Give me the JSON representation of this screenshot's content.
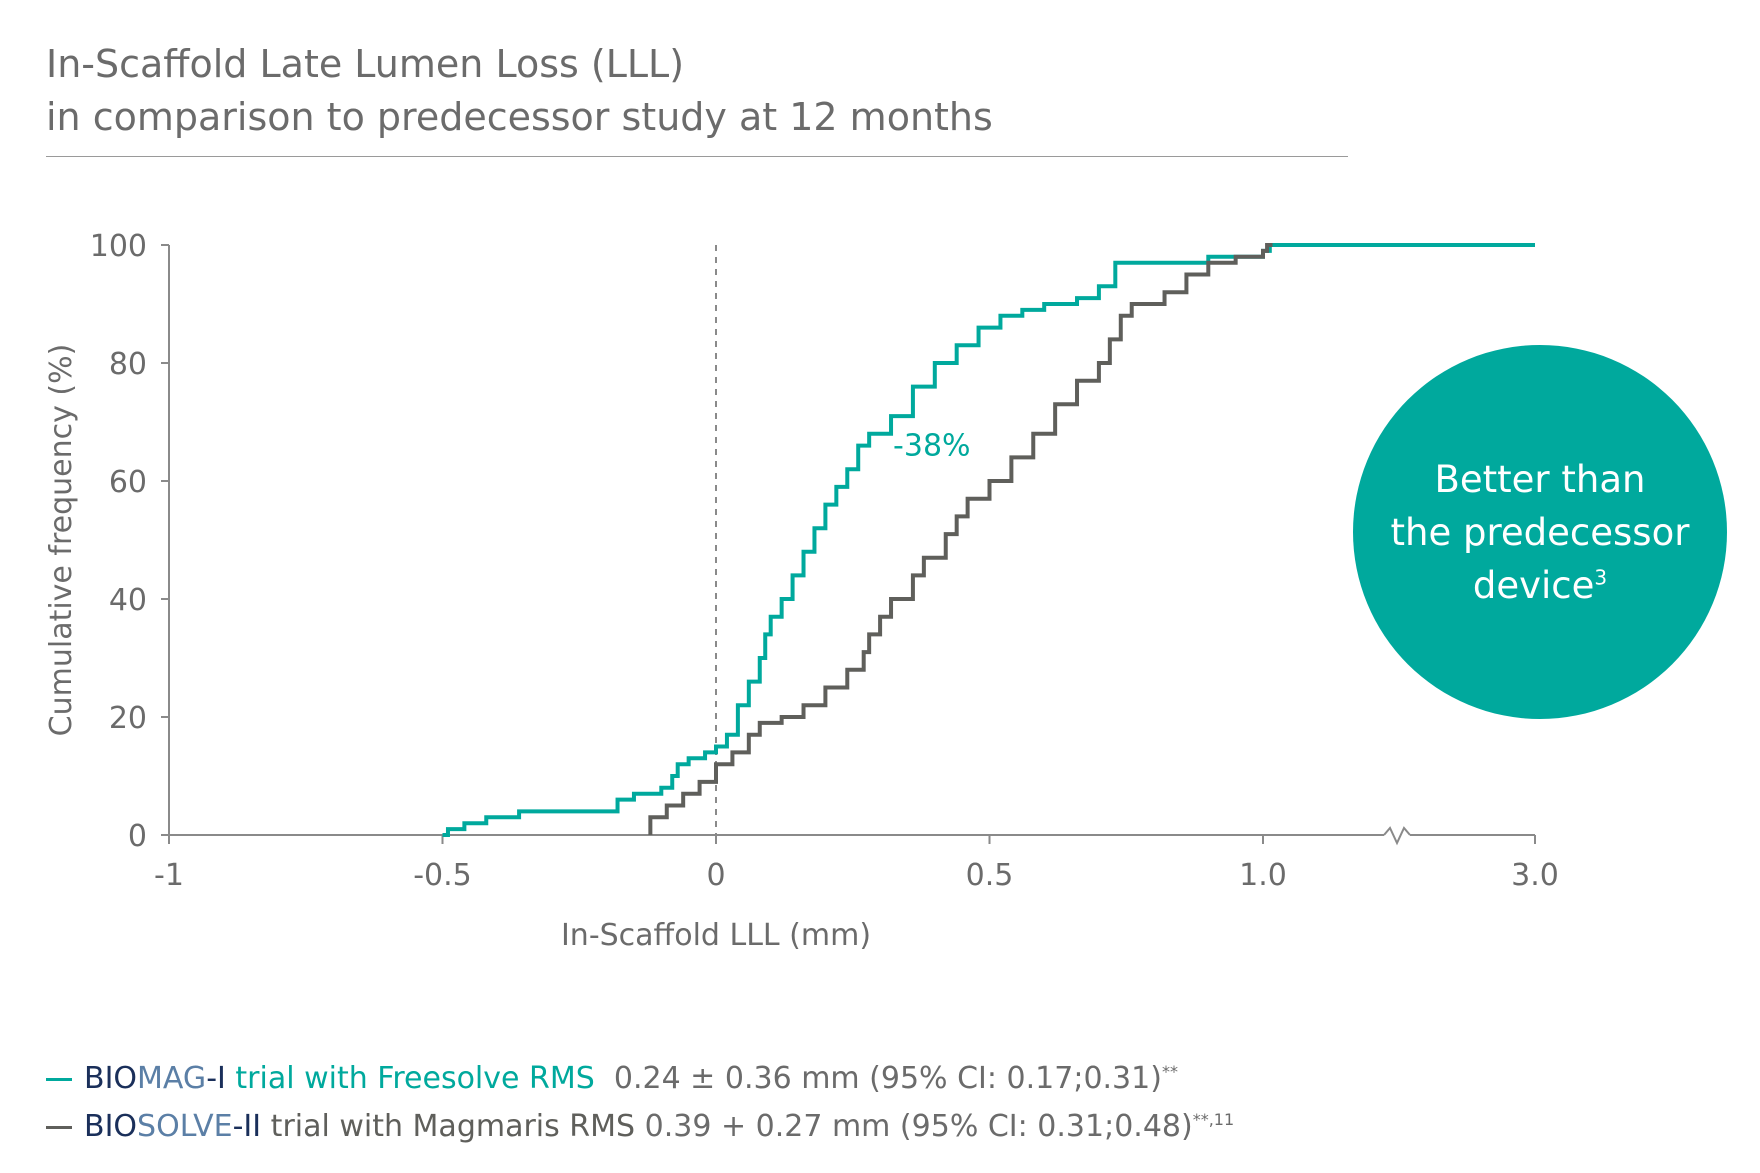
{
  "title": {
    "line1": "In-Scaffold Late Lumen Loss (LLL)",
    "line2": "in comparison to predecessor study at 12 months"
  },
  "badge": {
    "line1": "Better than",
    "line2": "the predecessor",
    "line3": "device",
    "sup": "3"
  },
  "legend": [
    {
      "dash_color": "#00a99d",
      "bio": "BIO",
      "study": "MAG",
      "hyphen": "-I",
      "trial": " trial with Freesolve RMS",
      "stats": "  0.24 ± 0.36 mm (95% CI: 0.17;0.31)",
      "sup": "**",
      "trial_color": "#00a99d"
    },
    {
      "dash_color": "#5f5f5b",
      "bio": "BIO",
      "study": "SOLVE",
      "hyphen": "-II",
      "trial": " trial with Magmaris RMS",
      "stats": " 0.39 + 0.27 mm (95% CI: 0.31;0.48)",
      "sup": "**,11",
      "trial_color": "#5f5f5b"
    }
  ],
  "colors": {
    "teal": "#00a99d",
    "gray": "#5f5f5b",
    "navy": "#1a2f5a",
    "steel": "#5b7fa6"
  },
  "chart_data": {
    "type": "line",
    "title": "",
    "xlabel": "In-Scaffold LLL (mm)",
    "ylabel": "Cumulative frequency (%)",
    "xlim": [
      -1,
      3.0
    ],
    "ylim": [
      0,
      100
    ],
    "x_ticks": [
      "-1",
      "-0.5",
      "0",
      "0.5",
      "1.0",
      "3.0"
    ],
    "y_ticks": [
      "0",
      "20",
      "40",
      "60",
      "80",
      "100"
    ],
    "axis_break": "between 1.0 and 3.0",
    "reference_line": {
      "x": 0,
      "style": "dashed"
    },
    "annotation": {
      "text": "-38%",
      "x": 0.32,
      "y": 66
    },
    "series": [
      {
        "color": "#00a99d",
        "points": [
          [
            -0.5,
            0
          ],
          [
            -0.49,
            1
          ],
          [
            -0.46,
            2
          ],
          [
            -0.42,
            3
          ],
          [
            -0.36,
            4
          ],
          [
            -0.18,
            6
          ],
          [
            -0.15,
            7
          ],
          [
            -0.1,
            8
          ],
          [
            -0.08,
            10
          ],
          [
            -0.07,
            12
          ],
          [
            -0.05,
            13
          ],
          [
            -0.02,
            14
          ],
          [
            0,
            15
          ],
          [
            0.02,
            17
          ],
          [
            0.04,
            22
          ],
          [
            0.06,
            26
          ],
          [
            0.08,
            30
          ],
          [
            0.09,
            34
          ],
          [
            0.1,
            37
          ],
          [
            0.12,
            40
          ],
          [
            0.14,
            44
          ],
          [
            0.16,
            48
          ],
          [
            0.18,
            52
          ],
          [
            0.2,
            56
          ],
          [
            0.22,
            59
          ],
          [
            0.24,
            62
          ],
          [
            0.26,
            66
          ],
          [
            0.28,
            68
          ],
          [
            0.32,
            71
          ],
          [
            0.36,
            76
          ],
          [
            0.4,
            80
          ],
          [
            0.44,
            83
          ],
          [
            0.48,
            86
          ],
          [
            0.52,
            88
          ],
          [
            0.56,
            89
          ],
          [
            0.6,
            90
          ],
          [
            0.66,
            91
          ],
          [
            0.7,
            93
          ],
          [
            0.73,
            97
          ],
          [
            0.8,
            97
          ],
          [
            0.9,
            98
          ],
          [
            1.0,
            99
          ],
          [
            1.05,
            100
          ],
          [
            1.5,
            100
          ],
          [
            2.2,
            100
          ],
          [
            3.0,
            100
          ]
        ]
      },
      {
        "color": "#5f5f5b",
        "points": [
          [
            -0.12,
            0
          ],
          [
            -0.12,
            3
          ],
          [
            -0.09,
            5
          ],
          [
            -0.06,
            7
          ],
          [
            -0.03,
            9
          ],
          [
            0,
            12
          ],
          [
            0.03,
            14
          ],
          [
            0.06,
            17
          ],
          [
            0.08,
            19
          ],
          [
            0.12,
            20
          ],
          [
            0.16,
            22
          ],
          [
            0.2,
            25
          ],
          [
            0.24,
            28
          ],
          [
            0.27,
            31
          ],
          [
            0.28,
            34
          ],
          [
            0.3,
            37
          ],
          [
            0.32,
            40
          ],
          [
            0.36,
            44
          ],
          [
            0.38,
            47
          ],
          [
            0.42,
            51
          ],
          [
            0.44,
            54
          ],
          [
            0.46,
            57
          ],
          [
            0.5,
            60
          ],
          [
            0.54,
            64
          ],
          [
            0.58,
            68
          ],
          [
            0.62,
            73
          ],
          [
            0.66,
            77
          ],
          [
            0.7,
            80
          ],
          [
            0.72,
            84
          ],
          [
            0.74,
            88
          ],
          [
            0.76,
            90
          ],
          [
            0.82,
            92
          ],
          [
            0.86,
            95
          ],
          [
            0.9,
            97
          ],
          [
            0.95,
            98
          ],
          [
            1.0,
            99
          ],
          [
            1.03,
            100
          ],
          [
            1.07,
            100
          ]
        ]
      }
    ]
  }
}
